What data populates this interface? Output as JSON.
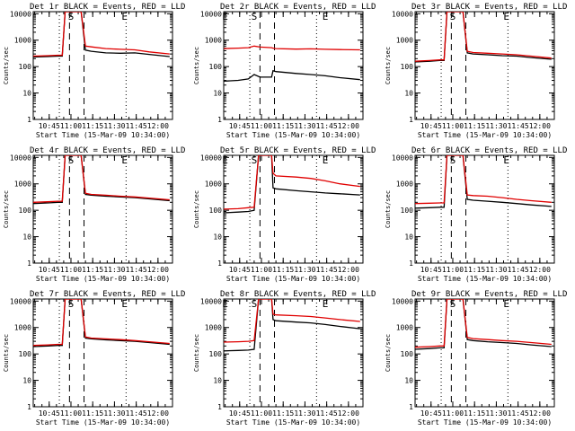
{
  "figure": {
    "xlabel": "Start Time (15-Mar-09 10:34:00)",
    "ylabel": "Counts/sec",
    "colors": {
      "events": "#000000",
      "lld": "#e00000",
      "axes": "#000000",
      "background": "#ffffff"
    },
    "y_ticks": [
      "1",
      "10",
      "100",
      "1000",
      "10000"
    ],
    "x_ticks": [
      "10:45",
      "11:00",
      "11:15",
      "11:30",
      "11:45",
      "12:00"
    ]
  },
  "chart_data": [
    {
      "type": "line",
      "title": "Det 1r BLACK = Events, RED = LLD",
      "x_unit": "minutes after 10:34:00",
      "xlim": [
        0,
        96
      ],
      "ylim": [
        1,
        12000
      ],
      "yscale": "log",
      "x_ticks": [
        "10:45",
        "11:00",
        "11:15",
        "11:30",
        "11:45",
        "12:00"
      ],
      "x_ticks_at": [
        11,
        26,
        41,
        56,
        71,
        86
      ],
      "vlines": [
        {
          "x": 18,
          "style": "dotted"
        },
        {
          "x": 25,
          "style": "dashed"
        },
        {
          "x": 35,
          "style": "dashed"
        },
        {
          "x": 64,
          "style": "dotted"
        }
      ],
      "markers": [
        {
          "x": 26,
          "text": "S"
        },
        {
          "x": 63,
          "text": "E"
        }
      ],
      "series": [
        {
          "name": "Events",
          "color": "#000000",
          "x": [
            0,
            10,
            17,
            20,
            22,
            26,
            33,
            36,
            40,
            50,
            60,
            70,
            80,
            94
          ],
          "y": [
            230,
            240,
            250,
            250,
            12000,
            12000,
            12000,
            420,
            380,
            330,
            320,
            330,
            290,
            240
          ]
        },
        {
          "name": "LLD",
          "color": "#e00000",
          "x": [
            0,
            10,
            17,
            20,
            22,
            26,
            33,
            36,
            40,
            50,
            60,
            70,
            80,
            94
          ],
          "y": [
            250,
            260,
            270,
            270,
            12000,
            12000,
            12000,
            600,
            560,
            480,
            450,
            430,
            360,
            300
          ]
        }
      ]
    },
    {
      "type": "line",
      "title": "Det 2r BLACK = Events, RED = LLD",
      "x_unit": "minutes after 10:34:00",
      "xlim": [
        0,
        96
      ],
      "ylim": [
        1,
        12000
      ],
      "yscale": "log",
      "x_ticks": [
        "10:45",
        "11:00",
        "11:15",
        "11:30",
        "11:45",
        "12:00"
      ],
      "x_ticks_at": [
        11,
        26,
        41,
        56,
        71,
        86
      ],
      "vlines": [
        {
          "x": 18,
          "style": "dotted"
        },
        {
          "x": 25,
          "style": "dashed"
        },
        {
          "x": 35,
          "style": "dashed"
        },
        {
          "x": 64,
          "style": "dotted"
        }
      ],
      "markers": [
        {
          "x": 1,
          "text": "E"
        },
        {
          "x": 21,
          "text": "S"
        },
        {
          "x": 70,
          "text": "E"
        }
      ],
      "series": [
        {
          "name": "Events",
          "color": "#000000",
          "x": [
            0,
            10,
            17,
            21,
            25,
            33,
            34,
            36,
            50,
            60,
            70,
            80,
            94
          ],
          "y": [
            28,
            30,
            34,
            50,
            40,
            40,
            70,
            65,
            55,
            50,
            45,
            38,
            32
          ]
        },
        {
          "name": "LLD",
          "color": "#e00000",
          "x": [
            0,
            10,
            17,
            21,
            25,
            33,
            34,
            36,
            50,
            60,
            70,
            80,
            94
          ],
          "y": [
            480,
            500,
            520,
            600,
            550,
            520,
            500,
            480,
            460,
            470,
            450,
            440,
            430
          ]
        }
      ]
    },
    {
      "type": "line",
      "title": "Det 3r BLACK = Events, RED = LLD",
      "x_unit": "minutes after 10:34:00",
      "xlim": [
        0,
        96
      ],
      "ylim": [
        1,
        12000
      ],
      "yscale": "log",
      "x_ticks": [
        "10:45",
        "11:00",
        "11:15",
        "11:30",
        "11:45",
        "12:00"
      ],
      "x_ticks_at": [
        11,
        26,
        41,
        56,
        71,
        86
      ],
      "vlines": [
        {
          "x": 18,
          "style": "dotted"
        },
        {
          "x": 25,
          "style": "dashed"
        },
        {
          "x": 35,
          "style": "dashed"
        },
        {
          "x": 64,
          "style": "dotted"
        }
      ],
      "markers": [
        {
          "x": 26,
          "text": "S"
        },
        {
          "x": 63,
          "text": "E"
        }
      ],
      "series": [
        {
          "name": "Events",
          "color": "#000000",
          "x": [
            0,
            10,
            17,
            20,
            22,
            26,
            33,
            36,
            40,
            50,
            60,
            70,
            80,
            94
          ],
          "y": [
            150,
            160,
            170,
            170,
            12000,
            12000,
            12000,
            330,
            300,
            280,
            260,
            250,
            220,
            190
          ]
        },
        {
          "name": "LLD",
          "color": "#e00000",
          "x": [
            0,
            10,
            17,
            20,
            22,
            26,
            33,
            36,
            40,
            50,
            60,
            70,
            80,
            94
          ],
          "y": [
            160,
            170,
            180,
            180,
            12000,
            12000,
            12000,
            380,
            340,
            320,
            300,
            280,
            250,
            210
          ]
        }
      ]
    },
    {
      "type": "line",
      "title": "Det 4r BLACK = Events, RED = LLD",
      "x_unit": "minutes after 10:34:00",
      "xlim": [
        0,
        96
      ],
      "ylim": [
        1,
        12000
      ],
      "yscale": "log",
      "x_ticks": [
        "10:45",
        "11:00",
        "11:15",
        "11:30",
        "11:45",
        "12:00"
      ],
      "x_ticks_at": [
        11,
        26,
        41,
        56,
        71,
        86
      ],
      "vlines": [
        {
          "x": 18,
          "style": "dotted"
        },
        {
          "x": 25,
          "style": "dashed"
        },
        {
          "x": 35,
          "style": "dashed"
        },
        {
          "x": 64,
          "style": "dotted"
        }
      ],
      "markers": [
        {
          "x": 26,
          "text": "S"
        },
        {
          "x": 63,
          "text": "E"
        }
      ],
      "series": [
        {
          "name": "Events",
          "color": "#000000",
          "x": [
            0,
            10,
            17,
            20,
            22,
            26,
            33,
            36,
            40,
            50,
            60,
            70,
            80,
            94
          ],
          "y": [
            180,
            190,
            200,
            200,
            12000,
            12000,
            12000,
            400,
            370,
            340,
            320,
            300,
            270,
            230
          ]
        },
        {
          "name": "LLD",
          "color": "#e00000",
          "x": [
            0,
            10,
            17,
            20,
            22,
            26,
            33,
            36,
            40,
            50,
            60,
            70,
            80,
            94
          ],
          "y": [
            200,
            210,
            220,
            220,
            12000,
            12000,
            12000,
            440,
            400,
            370,
            340,
            320,
            290,
            250
          ]
        }
      ]
    },
    {
      "type": "line",
      "title": "Det 5r BLACK = Events, RED = LLD",
      "x_unit": "minutes after 10:34:00",
      "xlim": [
        0,
        96
      ],
      "ylim": [
        1,
        12000
      ],
      "yscale": "log",
      "x_ticks": [
        "10:45",
        "11:00",
        "11:15",
        "11:30",
        "11:45",
        "12:00"
      ],
      "x_ticks_at": [
        11,
        26,
        41,
        56,
        71,
        86
      ],
      "vlines": [
        {
          "x": 18,
          "style": "dotted"
        },
        {
          "x": 25,
          "style": "dashed"
        },
        {
          "x": 35,
          "style": "dashed"
        },
        {
          "x": 64,
          "style": "dotted"
        }
      ],
      "markers": [
        {
          "x": 1,
          "text": "E"
        },
        {
          "x": 21,
          "text": "S"
        },
        {
          "x": 70,
          "text": "E"
        }
      ],
      "series": [
        {
          "name": "Events",
          "color": "#000000",
          "x": [
            0,
            10,
            17,
            21,
            24,
            26,
            33,
            34,
            36,
            50,
            60,
            70,
            80,
            94
          ],
          "y": [
            80,
            85,
            90,
            100,
            12000,
            12000,
            12000,
            700,
            650,
            550,
            500,
            450,
            420,
            380
          ]
        },
        {
          "name": "LLD",
          "color": "#e00000",
          "x": [
            0,
            10,
            17,
            21,
            24,
            26,
            33,
            34,
            36,
            50,
            60,
            70,
            80,
            94
          ],
          "y": [
            110,
            115,
            125,
            130,
            12000,
            12000,
            12000,
            2500,
            2000,
            1800,
            1600,
            1300,
            1000,
            800
          ]
        }
      ]
    },
    {
      "type": "line",
      "title": "Det 6r BLACK = Events, RED = LLD",
      "x_unit": "minutes after 10:34:00",
      "xlim": [
        0,
        96
      ],
      "ylim": [
        1,
        12000
      ],
      "yscale": "log",
      "x_ticks": [
        "10:45",
        "11:00",
        "11:15",
        "11:30",
        "11:45",
        "12:00"
      ],
      "x_ticks_at": [
        11,
        26,
        41,
        56,
        71,
        86
      ],
      "vlines": [
        {
          "x": 18,
          "style": "dotted"
        },
        {
          "x": 25,
          "style": "dashed"
        },
        {
          "x": 35,
          "style": "dashed"
        },
        {
          "x": 64,
          "style": "dotted"
        }
      ],
      "markers": [
        {
          "x": 26,
          "text": "S"
        },
        {
          "x": 63,
          "text": "E"
        }
      ],
      "series": [
        {
          "name": "Events",
          "color": "#000000",
          "x": [
            0,
            10,
            17,
            20,
            22,
            26,
            33,
            36,
            40,
            50,
            60,
            70,
            80,
            94
          ],
          "y": [
            120,
            125,
            130,
            130,
            12000,
            12000,
            12000,
            260,
            240,
            220,
            200,
            180,
            160,
            140
          ]
        },
        {
          "name": "LLD",
          "color": "#e00000",
          "x": [
            0,
            10,
            17,
            20,
            22,
            26,
            33,
            36,
            40,
            50,
            60,
            70,
            80,
            94
          ],
          "y": [
            180,
            185,
            190,
            190,
            12000,
            12000,
            12000,
            380,
            360,
            340,
            300,
            260,
            230,
            200
          ]
        }
      ]
    },
    {
      "type": "line",
      "title": "Det 7r BLACK = Events, RED = LLD",
      "x_unit": "minutes after 10:34:00",
      "xlim": [
        0,
        96
      ],
      "ylim": [
        1,
        12000
      ],
      "yscale": "log",
      "x_ticks": [
        "10:45",
        "11:00",
        "11:15",
        "11:30",
        "11:45",
        "12:00"
      ],
      "x_ticks_at": [
        11,
        26,
        41,
        56,
        71,
        86
      ],
      "vlines": [
        {
          "x": 18,
          "style": "dotted"
        },
        {
          "x": 25,
          "style": "dashed"
        },
        {
          "x": 35,
          "style": "dashed"
        },
        {
          "x": 64,
          "style": "dotted"
        }
      ],
      "markers": [
        {
          "x": 26,
          "text": "S"
        },
        {
          "x": 63,
          "text": "E"
        }
      ],
      "series": [
        {
          "name": "Events",
          "color": "#000000",
          "x": [
            0,
            10,
            17,
            20,
            22,
            26,
            33,
            36,
            40,
            50,
            60,
            70,
            80,
            94
          ],
          "y": [
            190,
            200,
            210,
            210,
            12000,
            12000,
            12000,
            400,
            370,
            340,
            320,
            300,
            270,
            230
          ]
        },
        {
          "name": "LLD",
          "color": "#e00000",
          "x": [
            0,
            10,
            17,
            20,
            22,
            26,
            33,
            36,
            40,
            50,
            60,
            70,
            80,
            94
          ],
          "y": [
            210,
            220,
            230,
            230,
            12000,
            12000,
            12000,
            440,
            400,
            370,
            350,
            320,
            290,
            250
          ]
        }
      ]
    },
    {
      "type": "line",
      "title": "Det 8r BLACK = Events, RED = LLD",
      "x_unit": "minutes after 10:34:00",
      "xlim": [
        0,
        96
      ],
      "ylim": [
        1,
        12000
      ],
      "yscale": "log",
      "x_ticks": [
        "10:45",
        "11:00",
        "11:15",
        "11:30",
        "11:45",
        "12:00"
      ],
      "x_ticks_at": [
        11,
        26,
        41,
        56,
        71,
        86
      ],
      "vlines": [
        {
          "x": 18,
          "style": "dotted"
        },
        {
          "x": 25,
          "style": "dashed"
        },
        {
          "x": 35,
          "style": "dashed"
        },
        {
          "x": 64,
          "style": "dotted"
        }
      ],
      "markers": [
        {
          "x": 1,
          "text": "E"
        },
        {
          "x": 21,
          "text": "S"
        },
        {
          "x": 70,
          "text": "E"
        }
      ],
      "series": [
        {
          "name": "Events",
          "color": "#000000",
          "x": [
            0,
            10,
            17,
            21,
            24,
            26,
            33,
            34,
            36,
            50,
            60,
            70,
            80,
            94
          ],
          "y": [
            130,
            135,
            140,
            150,
            12000,
            12000,
            12000,
            2000,
            1800,
            1600,
            1500,
            1300,
            1100,
            900
          ]
        },
        {
          "name": "LLD",
          "color": "#e00000",
          "x": [
            0,
            10,
            17,
            21,
            24,
            26,
            33,
            34,
            36,
            50,
            60,
            70,
            80,
            94
          ],
          "y": [
            280,
            290,
            300,
            320,
            12000,
            12000,
            12000,
            3200,
            3000,
            2800,
            2600,
            2300,
            2000,
            1700
          ]
        }
      ]
    },
    {
      "type": "line",
      "title": "Det 9r BLACK = Events, RED = LLD",
      "x_unit": "minutes after 10:34:00",
      "xlim": [
        0,
        96
      ],
      "ylim": [
        1,
        12000
      ],
      "yscale": "log",
      "x_ticks": [
        "10:45",
        "11:00",
        "11:15",
        "11:30",
        "11:45",
        "12:00"
      ],
      "x_ticks_at": [
        11,
        26,
        41,
        56,
        71,
        86
      ],
      "vlines": [
        {
          "x": 18,
          "style": "dotted"
        },
        {
          "x": 25,
          "style": "dashed"
        },
        {
          "x": 35,
          "style": "dashed"
        },
        {
          "x": 64,
          "style": "dotted"
        }
      ],
      "markers": [
        {
          "x": 26,
          "text": "S"
        },
        {
          "x": 63,
          "text": "E"
        }
      ],
      "series": [
        {
          "name": "Events",
          "color": "#000000",
          "x": [
            0,
            10,
            17,
            20,
            22,
            26,
            33,
            36,
            40,
            50,
            60,
            70,
            80,
            94
          ],
          "y": [
            150,
            160,
            170,
            170,
            12000,
            12000,
            12000,
            350,
            320,
            290,
            270,
            250,
            220,
            190
          ]
        },
        {
          "name": "LLD",
          "color": "#e00000",
          "x": [
            0,
            10,
            17,
            20,
            22,
            26,
            33,
            36,
            40,
            50,
            60,
            70,
            80,
            94
          ],
          "y": [
            180,
            190,
            200,
            200,
            12000,
            12000,
            12000,
            420,
            380,
            350,
            320,
            300,
            270,
            230
          ]
        }
      ]
    }
  ]
}
